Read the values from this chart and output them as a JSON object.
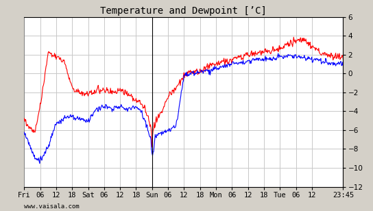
{
  "title": "Temperature and Dewpoint [’C]",
  "xlabel_bottom": "www.vaisala.com",
  "ylim": [
    -12,
    6
  ],
  "x_tick_labels": [
    "Fri",
    "06",
    "12",
    "18",
    "Sat",
    "06",
    "12",
    "18",
    "Sun",
    "06",
    "12",
    "18",
    "Mon",
    "06",
    "12",
    "18",
    "Tue",
    "06",
    "12",
    "23:45"
  ],
  "background_color": "#d4d0c8",
  "plot_bg_color": "#ffffff",
  "grid_color": "#c8c8c8",
  "temp_color": "#ff0000",
  "dewp_color": "#0000ff",
  "line_width": 0.8,
  "title_fontsize": 10,
  "tick_fontsize": 7.5,
  "total_hours": 119.75,
  "x_tick_hours": [
    0,
    6,
    12,
    18,
    24,
    30,
    36,
    42,
    48,
    54,
    60,
    66,
    72,
    78,
    84,
    90,
    96,
    102,
    108,
    119.75
  ],
  "temp_ctrl_h": [
    0,
    2,
    4,
    6,
    9,
    12,
    15,
    18,
    21,
    24,
    27,
    30,
    33,
    36,
    39,
    42,
    44,
    46,
    47.5,
    48,
    49,
    50,
    52,
    54,
    57,
    60,
    63,
    66,
    69,
    72,
    75,
    78,
    81,
    84,
    87,
    90,
    93,
    96,
    99,
    102,
    105,
    108,
    111,
    114,
    117,
    119.75
  ],
  "temp_ctrl_v": [
    -4.8,
    -5.8,
    -6.2,
    -3.5,
    2.2,
    1.8,
    1.3,
    -1.5,
    -2.0,
    -2.2,
    -1.8,
    -1.7,
    -2.0,
    -1.8,
    -2.2,
    -2.8,
    -3.2,
    -4.2,
    -5.5,
    -5.8,
    -5.5,
    -4.8,
    -3.8,
    -2.5,
    -1.5,
    -0.2,
    0.1,
    0.2,
    0.8,
    1.0,
    1.2,
    1.5,
    1.8,
    2.0,
    2.2,
    2.2,
    2.5,
    2.5,
    3.2,
    3.5,
    3.5,
    3.0,
    2.2,
    2.0,
    1.8,
    1.8
  ],
  "dewp_ctrl_h": [
    0,
    2,
    4,
    6,
    9,
    12,
    15,
    18,
    21,
    24,
    27,
    30,
    33,
    36,
    39,
    42,
    44,
    46,
    47.5,
    48,
    48.5,
    49,
    50,
    52,
    54,
    57,
    60,
    63,
    66,
    69,
    72,
    75,
    78,
    81,
    84,
    87,
    90,
    93,
    96,
    99,
    102,
    105,
    108,
    111,
    114,
    117,
    119.75
  ],
  "dewp_ctrl_v": [
    -6.3,
    -7.5,
    -9.0,
    -9.2,
    -7.8,
    -5.2,
    -4.8,
    -4.5,
    -4.8,
    -5.0,
    -3.8,
    -3.5,
    -3.8,
    -3.5,
    -3.8,
    -3.5,
    -4.0,
    -5.5,
    -7.0,
    -8.8,
    -8.5,
    -7.0,
    -6.5,
    -6.2,
    -6.0,
    -5.5,
    -0.2,
    0.0,
    0.1,
    0.3,
    0.5,
    0.8,
    1.0,
    1.1,
    1.3,
    1.5,
    1.5,
    1.5,
    1.8,
    1.8,
    1.8,
    1.7,
    1.5,
    1.4,
    1.2,
    1.0,
    1.0
  ]
}
